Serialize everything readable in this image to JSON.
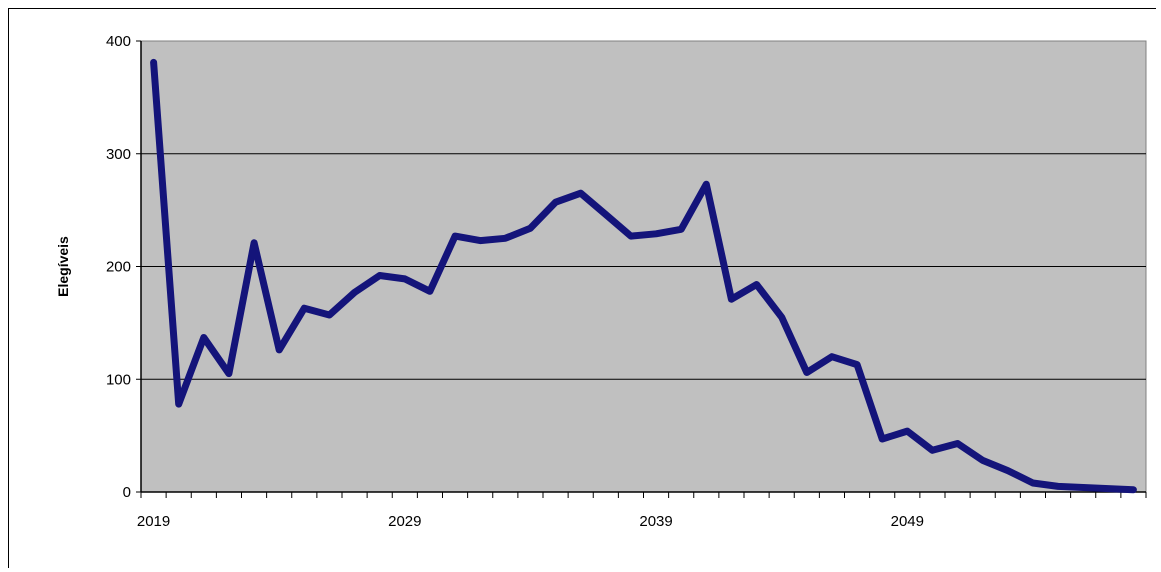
{
  "chart_data": {
    "type": "line",
    "xlabel": "",
    "ylabel": "Elegíveis",
    "ylim": [
      0,
      400
    ],
    "yticks": [
      0,
      100,
      200,
      300,
      400
    ],
    "xlim": [
      2019,
      2058
    ],
    "xtick_labels": [
      "2019",
      "2029",
      "2039",
      "2049"
    ],
    "grid": true,
    "legend": "none",
    "colors": {
      "line": "#14147a",
      "plot_bg": "#c0c0c0",
      "grid": "#000000"
    },
    "series": [
      {
        "x": [
          2019,
          2020,
          2021,
          2022,
          2023,
          2024,
          2025,
          2026,
          2027,
          2028,
          2029,
          2030,
          2031,
          2032,
          2033,
          2034,
          2035,
          2036,
          2037,
          2038,
          2039,
          2040,
          2041,
          2042,
          2043,
          2044,
          2045,
          2046,
          2047,
          2048,
          2049,
          2050,
          2051,
          2052,
          2053,
          2054,
          2055,
          2056,
          2057,
          2058
        ],
        "values": [
          381,
          78,
          137,
          105,
          221,
          126,
          163,
          157,
          177,
          192,
          189,
          178,
          227,
          223,
          225,
          234,
          257,
          265,
          246,
          227,
          229,
          233,
          273,
          171,
          184,
          155,
          106,
          120,
          113,
          47,
          54,
          37,
          43,
          28,
          19,
          8,
          5,
          4,
          3,
          2
        ]
      }
    ]
  }
}
